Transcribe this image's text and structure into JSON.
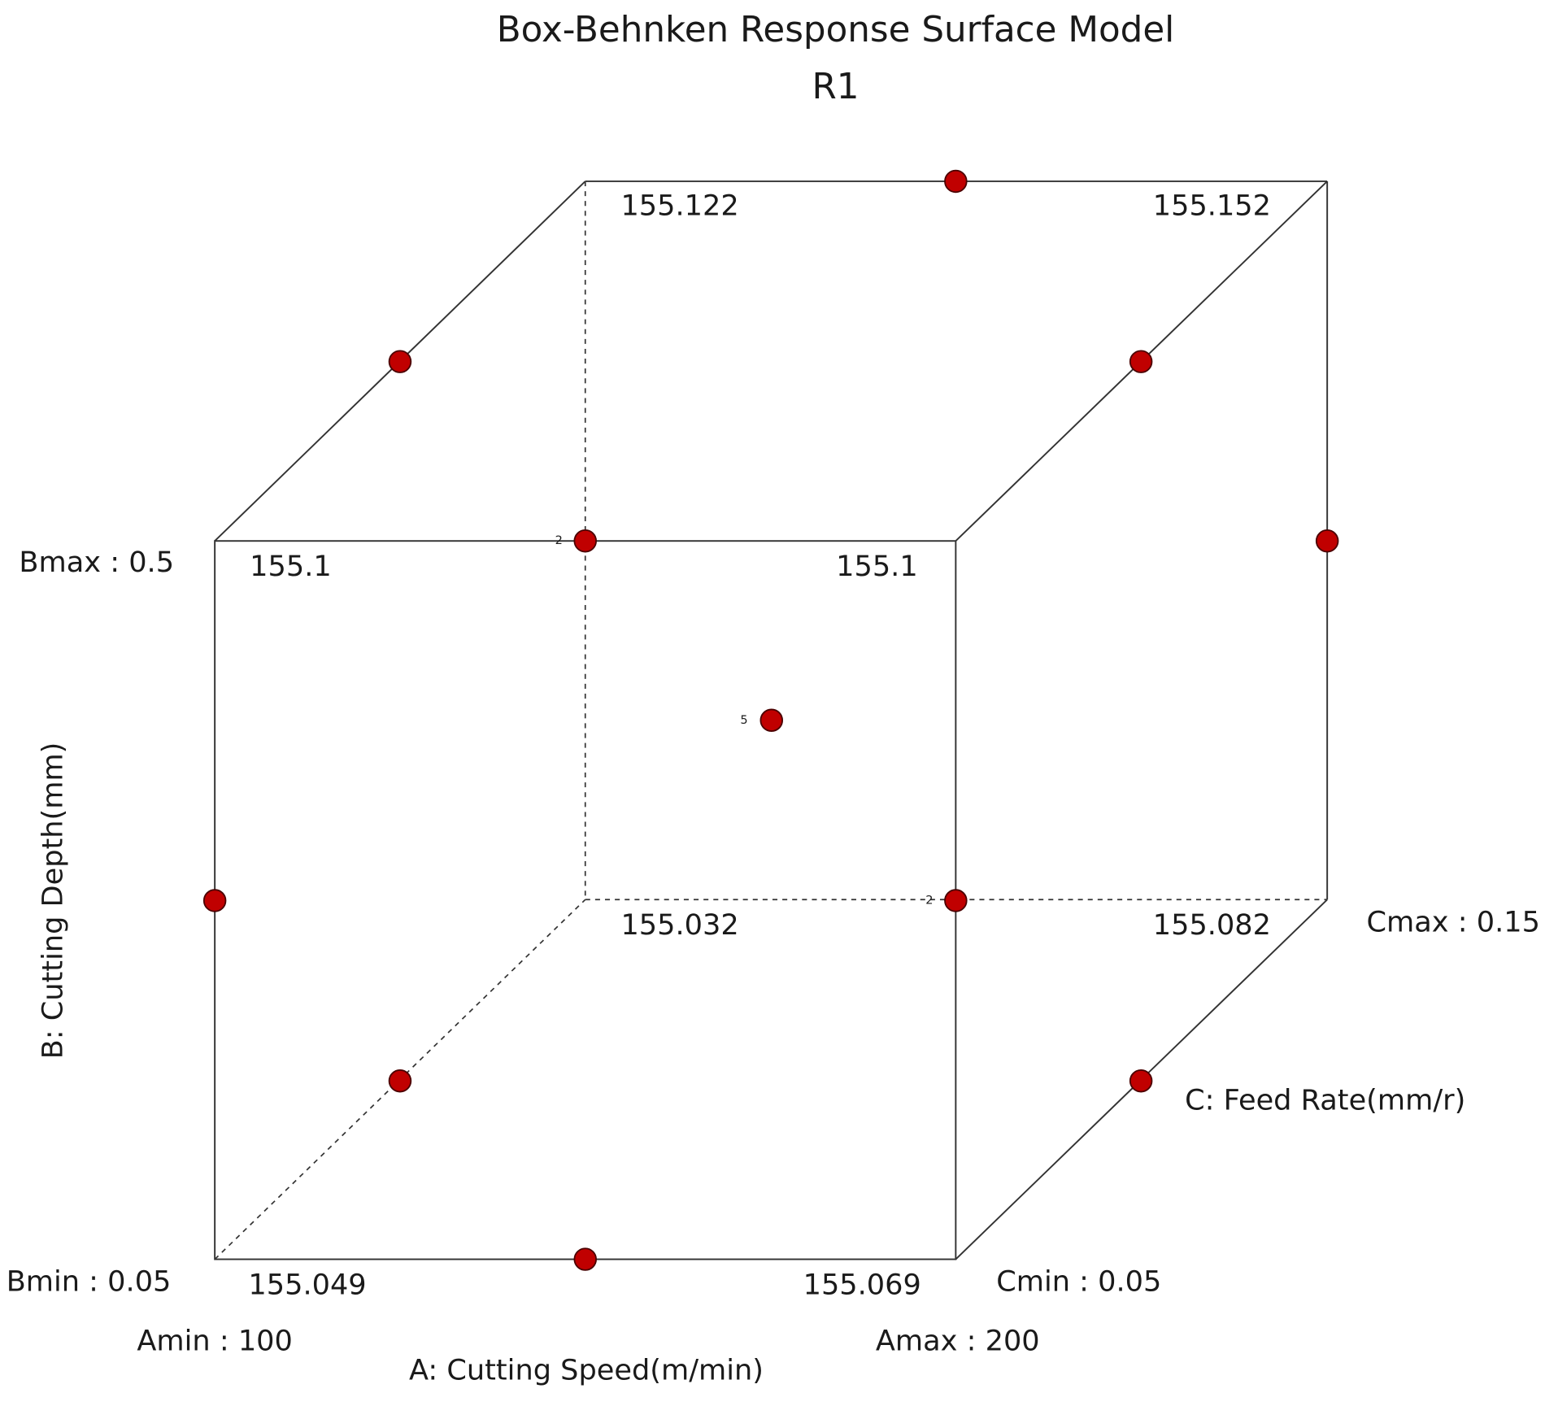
{
  "title": "Box-Behnken Response Surface Model",
  "subtitle": "R1",
  "corner_values": [
    "155.122",
    "155.152",
    "155.1",
    "155.1",
    "155.032",
    "155.082",
    "155.049",
    "155.069"
  ],
  "axes": {
    "a": {
      "label": "A: Cutting Speed(m/min)",
      "min": "Amin : 100",
      "max": "Amax : 200"
    },
    "b": {
      "label": "B: Cutting Depth(mm)",
      "min": "Bmin : 0.05",
      "max": "Bmax : 0.5"
    },
    "c": {
      "label": "C: Feed Rate(mm/r)",
      "min": "Cmin : 0.05",
      "max": "Cmax : 0.15"
    }
  },
  "point_counts": [
    "2",
    "5",
    "2"
  ]
}
